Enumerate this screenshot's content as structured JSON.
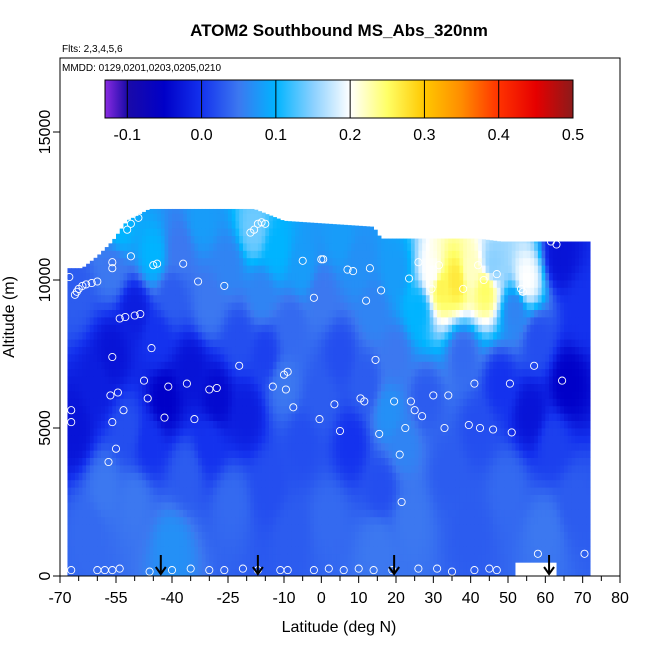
{
  "chart_data": {
    "type": "heatmap",
    "title": "ATOM2 Southbound MS_Abs_320nm",
    "subtitle_flights": "Flts: 2,3,4,5,6",
    "subtitle_dates": "MMDD: 0129,0201,0203,0205,0210",
    "xlabel": "Latitude (deg N)",
    "ylabel": "Altitude (m)",
    "xlim": [
      -70,
      80
    ],
    "ylim": [
      0,
      17500
    ],
    "x_ticks": [
      -70,
      -55,
      -40,
      -25,
      -10,
      0,
      10,
      20,
      30,
      40,
      50,
      60,
      70,
      80
    ],
    "x_minor_ticks": [
      -65,
      -60,
      -50,
      -45,
      -35,
      -30,
      -20,
      -15,
      -5,
      5,
      15,
      25,
      35,
      45,
      55,
      65,
      75
    ],
    "y_ticks": [
      0,
      5000,
      10000,
      15000
    ],
    "colorbar": {
      "ticks": [
        -0.1,
        0.0,
        0.1,
        0.2,
        0.3,
        0.4,
        0.5
      ],
      "tick_labels": [
        "-0.1",
        "0.0",
        "0.1",
        "0.2",
        "0.3",
        "0.4",
        "0.5"
      ],
      "range": [
        -0.13,
        0.5
      ],
      "placement": "top inside plot",
      "colors": [
        {
          "v": -0.13,
          "c": "#8a2be2"
        },
        {
          "v": -0.1,
          "c": "#1a0aa8"
        },
        {
          "v": -0.05,
          "c": "#0000c8"
        },
        {
          "v": 0.0,
          "c": "#1432ee"
        },
        {
          "v": 0.05,
          "c": "#3c78f0"
        },
        {
          "v": 0.1,
          "c": "#00b4ff"
        },
        {
          "v": 0.15,
          "c": "#8ad0ff"
        },
        {
          "v": 0.2,
          "c": "#ffffff"
        },
        {
          "v": 0.25,
          "c": "#ffff66"
        },
        {
          "v": 0.3,
          "c": "#ffc800"
        },
        {
          "v": 0.35,
          "c": "#ff8c00"
        },
        {
          "v": 0.4,
          "c": "#ff3200"
        },
        {
          "v": 0.45,
          "c": "#e60000"
        },
        {
          "v": 0.5,
          "c": "#8c1a1a"
        }
      ]
    },
    "grid": false,
    "curtain_extent": {
      "lat_min": -68,
      "lat_max": 72,
      "alt_min": 0,
      "alt_max": 12400
    },
    "curtain_top_profile": [
      [
        -68,
        10400
      ],
      [
        -64,
        10400
      ],
      [
        -60,
        10800
      ],
      [
        -56,
        11300
      ],
      [
        -52,
        12000
      ],
      [
        -46,
        12400
      ],
      [
        -30,
        12400
      ],
      [
        -18,
        12400
      ],
      [
        -10,
        12000
      ],
      [
        14,
        11800
      ],
      [
        16,
        11400
      ],
      [
        42,
        11400
      ],
      [
        48,
        11300
      ],
      [
        72,
        11300
      ]
    ],
    "curtain_samples": [
      [
        -66,
        5000,
        -0.03
      ],
      [
        -66,
        9500,
        0.03
      ],
      [
        -62,
        1500,
        0.04
      ],
      [
        -60,
        6500,
        -0.02
      ],
      [
        -58,
        3000,
        0.05
      ],
      [
        -56,
        10400,
        0.05
      ],
      [
        -56,
        7500,
        -0.03
      ],
      [
        -54,
        11800,
        0.1
      ],
      [
        -52,
        5000,
        0.02
      ],
      [
        -50,
        9000,
        -0.02
      ],
      [
        -50,
        2500,
        0.05
      ],
      [
        -46,
        4500,
        0.0
      ],
      [
        -45,
        10800,
        0.1
      ],
      [
        -44,
        8000,
        0.0
      ],
      [
        -42,
        6000,
        -0.05
      ],
      [
        -40,
        1000,
        0.07
      ],
      [
        -40,
        9500,
        0.03
      ],
      [
        -38,
        11000,
        0.05
      ],
      [
        -36,
        3500,
        0.03
      ],
      [
        -35,
        7000,
        -0.03
      ],
      [
        -32,
        12000,
        0.08
      ],
      [
        -30,
        9200,
        0.05
      ],
      [
        -30,
        4500,
        0.0
      ],
      [
        -28,
        6000,
        -0.04
      ],
      [
        -25,
        10500,
        0.06
      ],
      [
        -24,
        2500,
        0.04
      ],
      [
        -22,
        8000,
        0.02
      ],
      [
        -20,
        5500,
        -0.02
      ],
      [
        -18,
        11700,
        0.14
      ],
      [
        -16,
        9500,
        0.06
      ],
      [
        -15,
        7500,
        0.01
      ],
      [
        -14,
        3000,
        0.02
      ],
      [
        -12,
        11000,
        0.1
      ],
      [
        -10,
        6500,
        0.05
      ],
      [
        -8,
        8500,
        0.04
      ],
      [
        -8,
        1500,
        0.03
      ],
      [
        -5,
        4500,
        0.02
      ],
      [
        -5,
        10400,
        0.08
      ],
      [
        0,
        9500,
        0.05
      ],
      [
        0,
        6000,
        0.03
      ],
      [
        2,
        2000,
        0.04
      ],
      [
        5,
        7500,
        0.02
      ],
      [
        5,
        11400,
        0.08
      ],
      [
        8,
        4500,
        0.0
      ],
      [
        10,
        10500,
        0.07
      ],
      [
        12,
        6500,
        0.03
      ],
      [
        14,
        9000,
        0.06
      ],
      [
        15,
        1000,
        0.05
      ],
      [
        16,
        3000,
        0.02
      ],
      [
        18,
        5500,
        0.07
      ],
      [
        20,
        10300,
        0.08
      ],
      [
        20,
        7500,
        0.05
      ],
      [
        22,
        4500,
        0.06
      ],
      [
        24,
        2000,
        0.05
      ],
      [
        26,
        9000,
        0.1
      ],
      [
        28,
        6000,
        0.03
      ],
      [
        30,
        10200,
        0.2
      ],
      [
        32,
        9800,
        0.26
      ],
      [
        34,
        3500,
        0.03
      ],
      [
        36,
        10000,
        0.27
      ],
      [
        38,
        7500,
        0.04
      ],
      [
        40,
        10300,
        0.22
      ],
      [
        40,
        1500,
        0.03
      ],
      [
        42,
        5000,
        0.02
      ],
      [
        44,
        9700,
        0.25
      ],
      [
        46,
        10500,
        0.15
      ],
      [
        48,
        6500,
        0.0
      ],
      [
        50,
        3000,
        0.04
      ],
      [
        52,
        9000,
        0.06
      ],
      [
        55,
        10000,
        0.2
      ],
      [
        56,
        5500,
        -0.03
      ],
      [
        58,
        8000,
        0.02
      ],
      [
        60,
        1500,
        0.05
      ],
      [
        62,
        4500,
        0.01
      ],
      [
        64,
        10800,
        -0.03
      ],
      [
        66,
        6500,
        -0.05
      ],
      [
        68,
        2500,
        0.03
      ],
      [
        70,
        9000,
        0.0
      ]
    ],
    "observation_points": [
      [
        -67.5,
        10100
      ],
      [
        -67,
        5600
      ],
      [
        -67,
        5200
      ],
      [
        -66,
        9500
      ],
      [
        -65.5,
        9600
      ],
      [
        -65,
        9700
      ],
      [
        -64,
        9800
      ],
      [
        -63,
        9850
      ],
      [
        -61.5,
        9900
      ],
      [
        -60,
        9950
      ],
      [
        -56,
        10600
      ],
      [
        -56,
        10400
      ],
      [
        -56,
        7400
      ],
      [
        -56.5,
        6100
      ],
      [
        -56,
        5200
      ],
      [
        -57,
        3850
      ],
      [
        -55,
        4300
      ],
      [
        -54.5,
        6200
      ],
      [
        -54,
        8700
      ],
      [
        -53,
        5600
      ],
      [
        -52.5,
        8750
      ],
      [
        -52,
        11700
      ],
      [
        -51,
        11900
      ],
      [
        -51,
        10800
      ],
      [
        -50,
        8800
      ],
      [
        -49,
        12100
      ],
      [
        -48.5,
        8850
      ],
      [
        -47.5,
        6600
      ],
      [
        -46.5,
        6000
      ],
      [
        -45.5,
        7700
      ],
      [
        -45,
        10500
      ],
      [
        -44,
        10550
      ],
      [
        -42,
        5350
      ],
      [
        -41,
        6400
      ],
      [
        -37,
        10550
      ],
      [
        -36,
        6500
      ],
      [
        -34,
        5300
      ],
      [
        -33,
        9950
      ],
      [
        -30,
        6300
      ],
      [
        -28,
        6350
      ],
      [
        -26,
        9800
      ],
      [
        -22,
        7100
      ],
      [
        -19,
        11600
      ],
      [
        -18,
        11700
      ],
      [
        -17,
        11900
      ],
      [
        -16,
        11950
      ],
      [
        -15,
        11900
      ],
      [
        -13,
        6400
      ],
      [
        -10,
        6800
      ],
      [
        -9.5,
        6300
      ],
      [
        -9,
        6900
      ],
      [
        -7.5,
        5700
      ],
      [
        -5,
        10650
      ],
      [
        -2,
        9400
      ],
      [
        -0.5,
        5300
      ],
      [
        0,
        10700
      ],
      [
        0.5,
        10700
      ],
      [
        3.5,
        5800
      ],
      [
        5,
        4900
      ],
      [
        7,
        10350
      ],
      [
        8.5,
        10300
      ],
      [
        10.5,
        6000
      ],
      [
        11.5,
        5900
      ],
      [
        12,
        9300
      ],
      [
        13,
        10400
      ],
      [
        14.5,
        7300
      ],
      [
        15.5,
        4800
      ],
      [
        16,
        9650
      ],
      [
        19.5,
        5900
      ],
      [
        21,
        4100
      ],
      [
        21.5,
        2500
      ],
      [
        22.5,
        5000
      ],
      [
        23.5,
        10050
      ],
      [
        24,
        5900
      ],
      [
        25,
        5600
      ],
      [
        26,
        10600
      ],
      [
        27,
        5400
      ],
      [
        29.5,
        9700
      ],
      [
        30,
        6100
      ],
      [
        31.5,
        10500
      ],
      [
        33,
        5000
      ],
      [
        34,
        6100
      ],
      [
        38,
        9700
      ],
      [
        39.5,
        5100
      ],
      [
        41,
        6500
      ],
      [
        42,
        10500
      ],
      [
        42.5,
        5000
      ],
      [
        43.5,
        10000
      ],
      [
        46,
        4950
      ],
      [
        47,
        10200
      ],
      [
        50.5,
        6500
      ],
      [
        51,
        4850
      ],
      [
        53.5,
        9700
      ],
      [
        54,
        9600
      ],
      [
        57,
        7100
      ],
      [
        61.5,
        11300
      ],
      [
        63,
        11200
      ],
      [
        64.5,
        6600
      ],
      [
        -67,
        200
      ],
      [
        -60,
        200
      ],
      [
        -58,
        200
      ],
      [
        -56,
        200
      ],
      [
        -54,
        250
      ],
      [
        -46,
        150
      ],
      [
        -40,
        200
      ],
      [
        -35,
        250
      ],
      [
        -30,
        200
      ],
      [
        -26,
        200
      ],
      [
        -21,
        250
      ],
      [
        -17,
        200
      ],
      [
        -11,
        200
      ],
      [
        -9,
        200
      ],
      [
        -2,
        200
      ],
      [
        2,
        250
      ],
      [
        6,
        200
      ],
      [
        10,
        250
      ],
      [
        14,
        200
      ],
      [
        19,
        200
      ],
      [
        26,
        250
      ],
      [
        31,
        250
      ],
      [
        35,
        150
      ],
      [
        41,
        200
      ],
      [
        45,
        250
      ],
      [
        47,
        200
      ],
      [
        54,
        200
      ],
      [
        58,
        750
      ],
      [
        70.5,
        750
      ]
    ],
    "arrows": [
      {
        "lat": -43,
        "label": ""
      },
      {
        "lat": -17,
        "label": ""
      },
      {
        "lat": 19.5,
        "label": ""
      },
      {
        "lat": 61,
        "label": ""
      }
    ],
    "no_data_blocks": [
      {
        "lat0": 52,
        "lat1": 63,
        "alt0": 0,
        "alt1": 450
      }
    ]
  }
}
